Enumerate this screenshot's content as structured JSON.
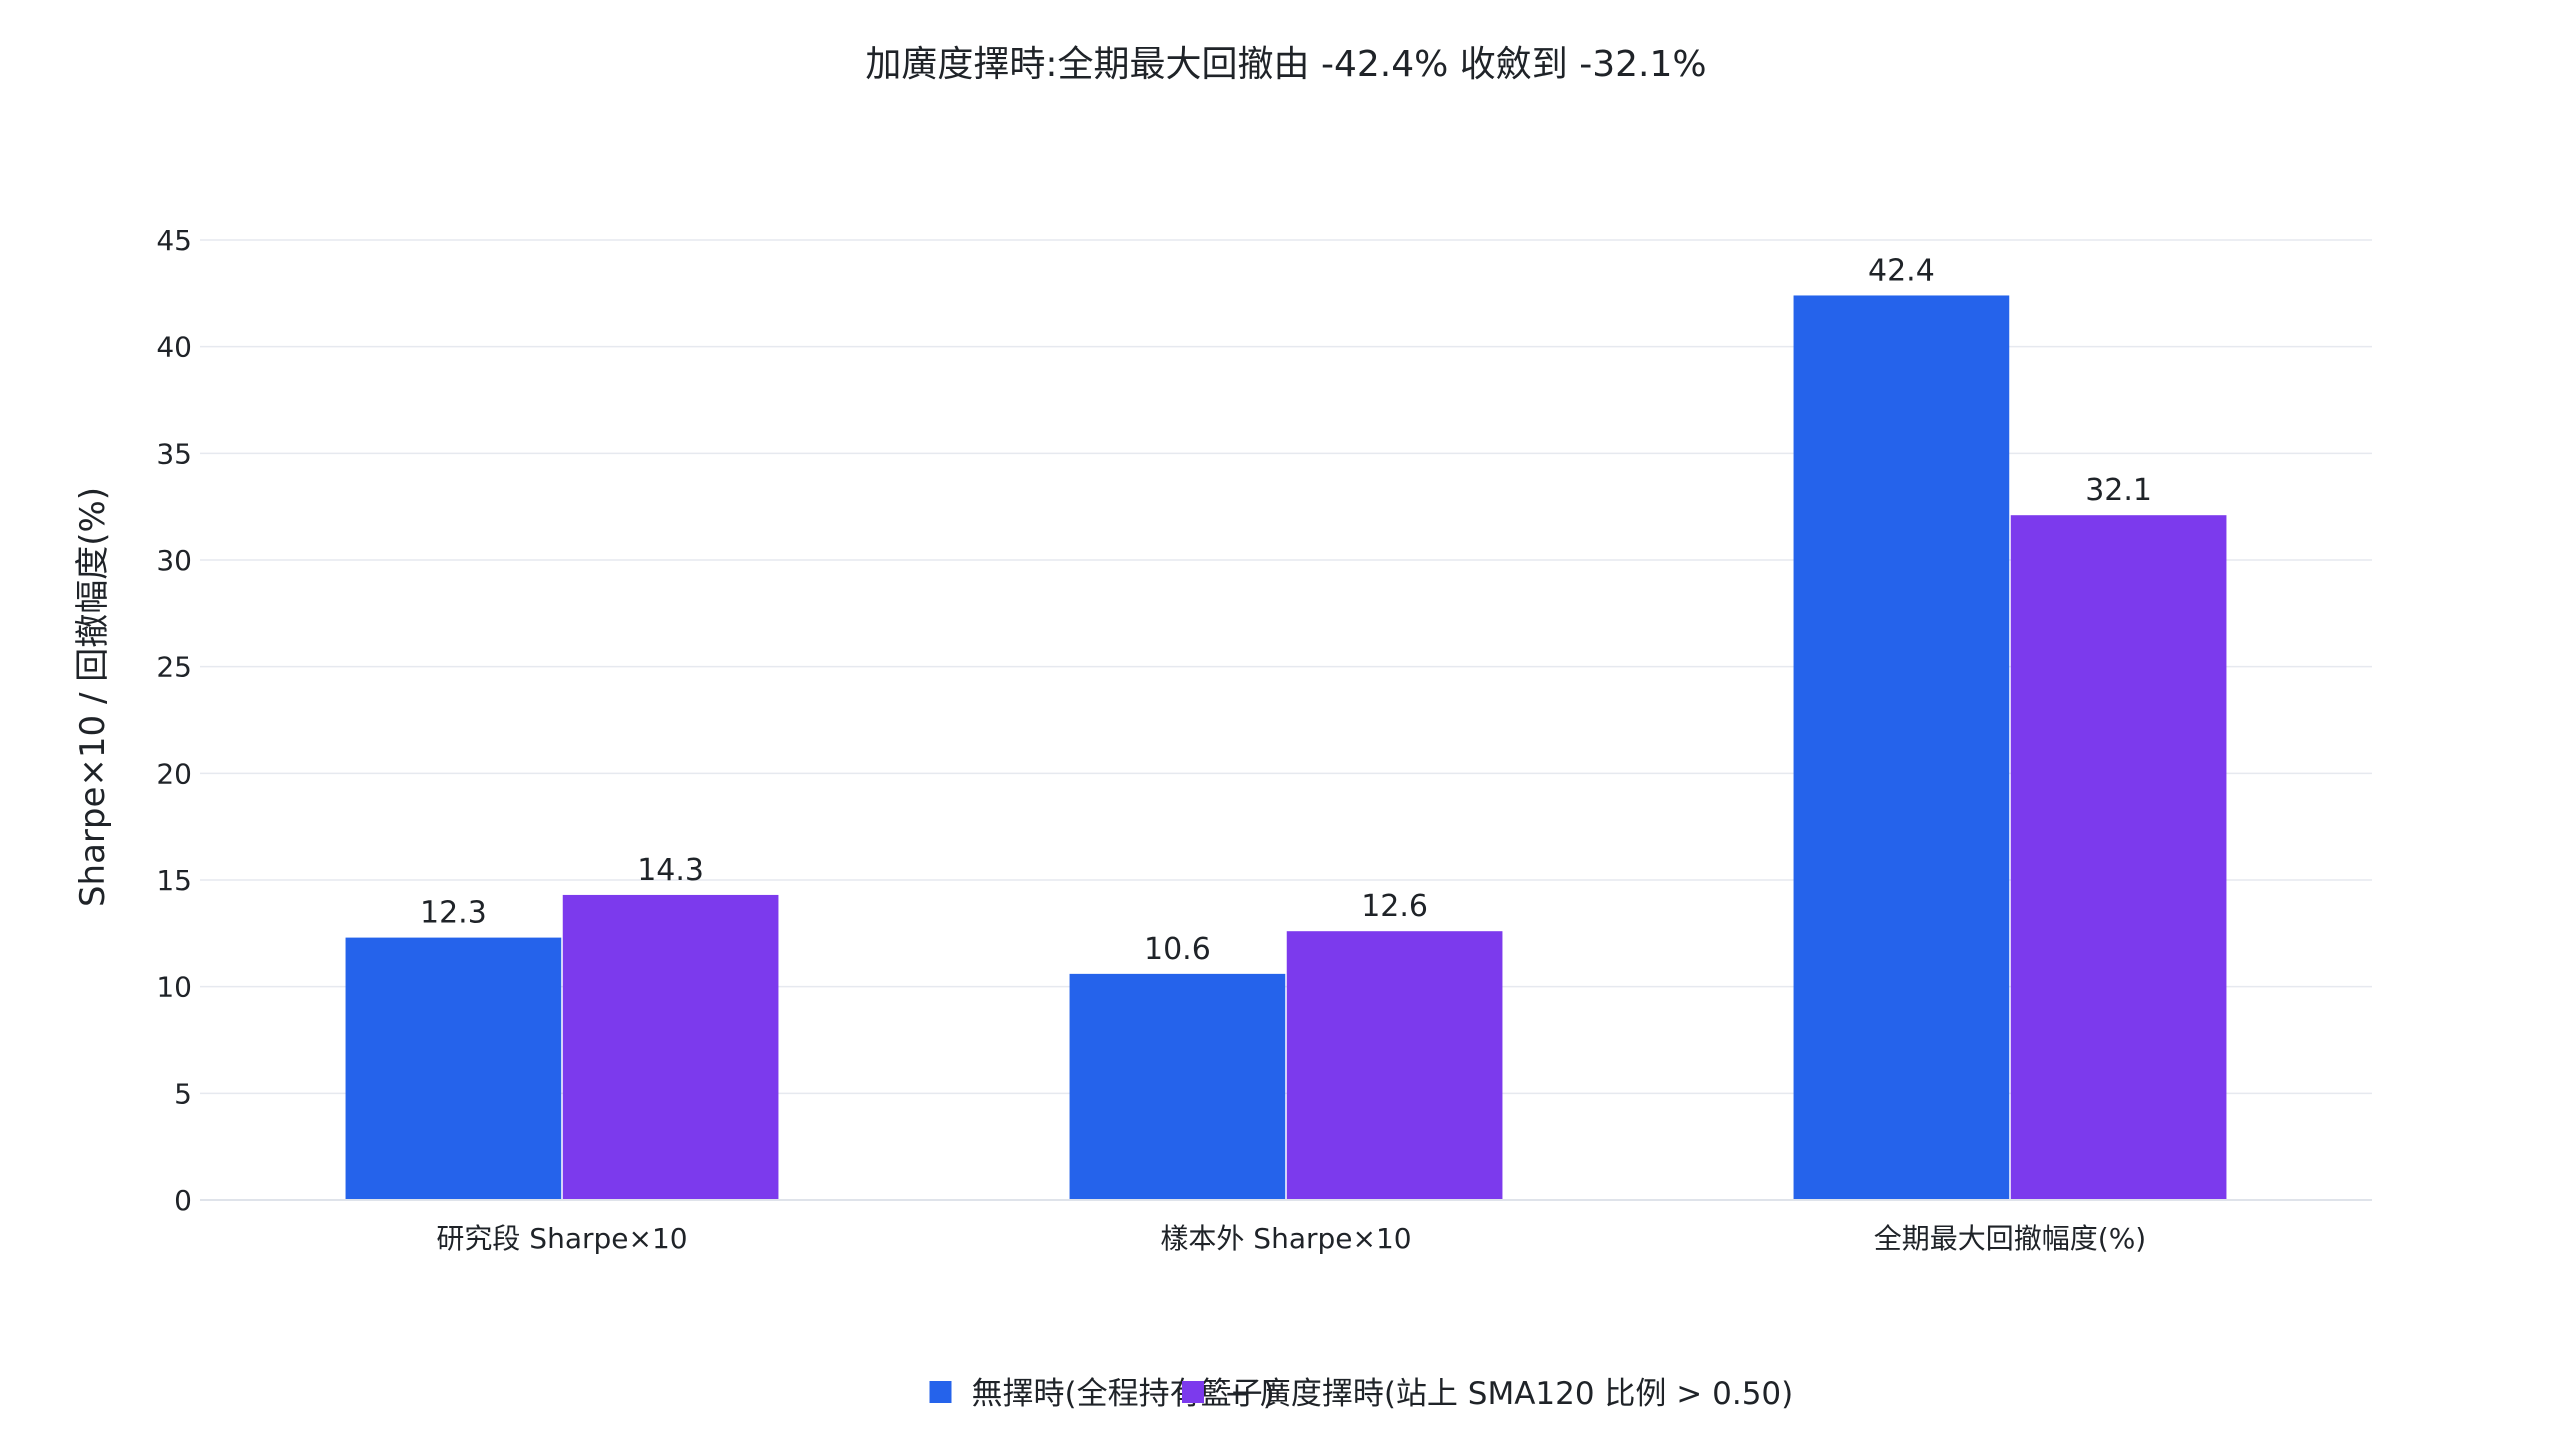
{
  "chart_data": {
    "type": "bar",
    "title": "加廣度擇時:全期最大回撤由 -42.4% 收斂到 -32.1%",
    "xlabel": "",
    "ylabel": "Sharpe×10 / 回撤幅度(%)",
    "categories": [
      "研究段 Sharpe×10",
      "樣本外 Sharpe×10",
      "全期最大回撤幅度(%)"
    ],
    "series": [
      {
        "name": "無擇時(全程持有籃子)",
        "color": "#2563eb",
        "values": [
          12.3,
          10.6,
          42.4
        ]
      },
      {
        "name": "+ 廣度擇時(站上 SMA120 比例 > 0.50)",
        "color": "#7c3aed",
        "values": [
          14.3,
          12.6,
          32.1
        ]
      }
    ],
    "ylim": [
      0,
      45
    ],
    "yticks": [
      0,
      5,
      10,
      15,
      20,
      25,
      30,
      35,
      40,
      45
    ],
    "grid": true,
    "legend_position": "bottom"
  }
}
